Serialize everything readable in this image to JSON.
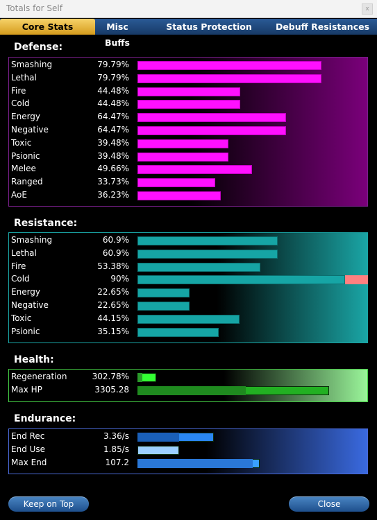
{
  "window": {
    "title": "Totals for Self",
    "close_glyph": "x"
  },
  "tabs": [
    {
      "label": "Core Stats",
      "active": true
    },
    {
      "label": "Misc Buffs",
      "active": false
    },
    {
      "label": "Status Protection",
      "active": false
    },
    {
      "label": "Debuff Resistances",
      "active": false
    }
  ],
  "defense": {
    "title": "Defense:",
    "color": "#ff10ff",
    "scale_max": 100,
    "rows": [
      {
        "label": "Smashing",
        "value": "79.79%",
        "amount": 79.79
      },
      {
        "label": "Lethal",
        "value": "79.79%",
        "amount": 79.79
      },
      {
        "label": "Fire",
        "value": "44.48%",
        "amount": 44.48
      },
      {
        "label": "Cold",
        "value": "44.48%",
        "amount": 44.48
      },
      {
        "label": "Energy",
        "value": "64.47%",
        "amount": 64.47
      },
      {
        "label": "Negative",
        "value": "64.47%",
        "amount": 64.47
      },
      {
        "label": "Toxic",
        "value": "39.48%",
        "amount": 39.48
      },
      {
        "label": "Psionic",
        "value": "39.48%",
        "amount": 39.48
      },
      {
        "label": "Melee",
        "value": "49.66%",
        "amount": 49.66
      },
      {
        "label": "Ranged",
        "value": "33.73%",
        "amount": 33.73
      },
      {
        "label": "AoE",
        "value": "36.23%",
        "amount": 36.23
      }
    ]
  },
  "resistance": {
    "title": "Resistance:",
    "color": "#16a5a5",
    "cap_color": "#ff8080",
    "scale_max": 100,
    "rows": [
      {
        "label": "Smashing",
        "value": "60.9%",
        "amount": 60.9
      },
      {
        "label": "Lethal",
        "value": "60.9%",
        "amount": 60.9
      },
      {
        "label": "Fire",
        "value": "53.38%",
        "amount": 53.38
      },
      {
        "label": "Cold",
        "value": "90%",
        "amount": 90,
        "uncapped_amount": 100
      },
      {
        "label": "Energy",
        "value": "22.65%",
        "amount": 22.65
      },
      {
        "label": "Negative",
        "value": "22.65%",
        "amount": 22.65
      },
      {
        "label": "Toxic",
        "value": "44.15%",
        "amount": 44.15
      },
      {
        "label": "Psionic",
        "value": "35.15%",
        "amount": 35.15
      }
    ]
  },
  "health": {
    "title": "Health:",
    "rows": [
      {
        "label": "Regeneration",
        "value": "302.78%",
        "base_fraction": 0.02,
        "fraction": 0.08,
        "base_color": "#2a9a2a",
        "color": "#33ff33"
      },
      {
        "label": "Max HP",
        "value": "3305.28",
        "base_fraction": 0.47,
        "fraction": 0.83,
        "base_color": "#1f8a1f",
        "color": "#22b022"
      }
    ]
  },
  "endurance": {
    "title": "Endurance:",
    "rows": [
      {
        "label": "End Rec",
        "value": "3.36/s",
        "base_fraction": 0.18,
        "fraction": 0.33,
        "base_color": "#1a5fb8",
        "color": "#2a86f0"
      },
      {
        "label": "End Use",
        "value": "1.85/s",
        "base_fraction": 0,
        "fraction": 0.18,
        "base_color": "#9ccfff",
        "color": "#9ccfff"
      },
      {
        "label": "Max End",
        "value": "107.2",
        "base_fraction": 0.5,
        "fraction": 0.53,
        "base_color": "#2a78d8",
        "color": "#3aa0ff"
      }
    ]
  },
  "footer": {
    "keep_on_top": "Keep on Top",
    "close": "Close"
  }
}
